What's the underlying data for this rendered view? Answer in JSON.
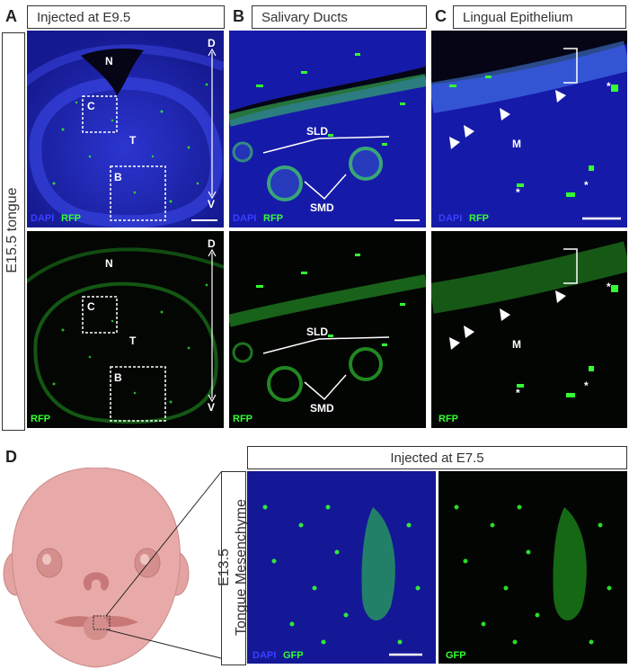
{
  "panels": {
    "a": {
      "letter": "A",
      "header": "Injected at E9.5",
      "N": "N",
      "T": "T",
      "C": "C",
      "B": "B",
      "D": "D",
      "V": "V"
    },
    "b": {
      "letter": "B",
      "header": "Salivary Ducts",
      "SLD": "SLD",
      "SMD": "SMD"
    },
    "c": {
      "letter": "C",
      "header": "Lingual Epithelium",
      "M": "M",
      "star": "*"
    },
    "d": {
      "letter": "D",
      "header": "Injected at E7.5"
    }
  },
  "side_label_top": "E15.5 tongue",
  "side_label_bottom_line1": "E13.5",
  "side_label_bottom_line2": "Tongue Mesenchyme",
  "channels": {
    "dapi": "DAPI",
    "rfp": "RFP",
    "gfp": "GFP"
  },
  "colors": {
    "dapi": "#1e22c8",
    "signal": "#22e022",
    "tissue_skin": "#e8aaa8",
    "tissue_dark": "#c97878"
  }
}
